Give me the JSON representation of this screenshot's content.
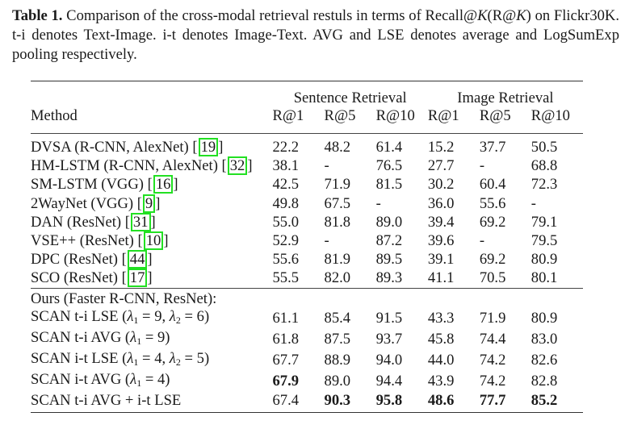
{
  "caption": {
    "label": "Table 1.",
    "text_part1": " Comparison of the cross-modal retrieval restuls in terms of Recall@",
    "k1": "K",
    "text_part2": "(R@",
    "k2": "K",
    "text_part3": ") on Flickr30K. t-i denotes Text-Image. i-t denotes Image-Text. AVG and LSE denotes average and LogSumExp pooling respectively."
  },
  "table": {
    "groups": [
      "Sentence Retrieval",
      "Image Retrieval"
    ],
    "method_header": "Method",
    "columns": [
      "R@1",
      "R@5",
      "R@10",
      "R@1",
      "R@5",
      "R@10"
    ],
    "baselines": [
      {
        "method": "DVSA (R-CNN, AlexNet) ",
        "cite": "19",
        "values": [
          "22.2",
          "48.2",
          "61.4",
          "15.2",
          "37.7",
          "50.5"
        ]
      },
      {
        "method": "HM-LSTM (R-CNN, AlexNet) ",
        "cite": "32",
        "values": [
          "38.1",
          "-",
          "76.5",
          "27.7",
          "-",
          "68.8"
        ]
      },
      {
        "method": "SM-LSTM (VGG) ",
        "cite": "16",
        "values": [
          "42.5",
          "71.9",
          "81.5",
          "30.2",
          "60.4",
          "72.3"
        ]
      },
      {
        "method": "2WayNet (VGG) ",
        "cite": "9",
        "values": [
          "49.8",
          "67.5",
          "-",
          "36.0",
          "55.6",
          "-"
        ]
      },
      {
        "method": "DAN (ResNet) ",
        "cite": "31",
        "values": [
          "55.0",
          "81.8",
          "89.0",
          "39.4",
          "69.2",
          "79.1"
        ]
      },
      {
        "method": "VSE++ (ResNet) ",
        "cite": "10",
        "values": [
          "52.9",
          "-",
          "87.2",
          "39.6",
          "-",
          "79.5"
        ]
      },
      {
        "method": "DPC (ResNet) ",
        "cite": "44",
        "values": [
          "55.6",
          "81.9",
          "89.5",
          "39.1",
          "69.2",
          "80.9"
        ]
      },
      {
        "method": "SCO (ResNet) ",
        "cite": "17",
        "values": [
          "55.5",
          "82.0",
          "89.3",
          "41.1",
          "70.5",
          "80.1"
        ]
      }
    ],
    "ours_header": "Ours (Faster R-CNN, ResNet):",
    "ours": [
      {
        "prefix": "SCAN t-i LSE (",
        "lambda_text": "λ1 = 9, λ2 = 6",
        "l1": "9",
        "l2": "6",
        "suffix": ")",
        "values": [
          "61.1",
          "85.4",
          "91.5",
          "43.3",
          "71.9",
          "80.9"
        ],
        "bold": [
          false,
          false,
          false,
          false,
          false,
          false
        ]
      },
      {
        "prefix": "SCAN t-i AVG (",
        "lambda_text": "λ1 = 9",
        "l1": "9",
        "suffix": ")",
        "values": [
          "61.8",
          "87.5",
          "93.7",
          "45.8",
          "74.4",
          "83.0"
        ],
        "bold": [
          false,
          false,
          false,
          false,
          false,
          false
        ]
      },
      {
        "prefix": "SCAN i-t LSE (",
        "lambda_text": "λ1 = 4, λ2 = 5",
        "l1": "4",
        "l2": "5",
        "suffix": ")",
        "values": [
          "67.7",
          "88.9",
          "94.0",
          "44.0",
          "74.2",
          "82.6"
        ],
        "bold": [
          false,
          false,
          false,
          false,
          false,
          false
        ]
      },
      {
        "prefix": "SCAN i-t AVG (",
        "lambda_text": "λ1 = 4",
        "l1": "4",
        "suffix": ")",
        "values": [
          "67.9",
          "89.0",
          "94.4",
          "43.9",
          "74.2",
          "82.8"
        ],
        "bold": [
          true,
          false,
          false,
          false,
          false,
          false
        ]
      },
      {
        "prefix": "SCAN t-i AVG + i-t LSE",
        "values": [
          "67.4",
          "90.3",
          "95.8",
          "48.6",
          "77.7",
          "85.2"
        ],
        "bold": [
          false,
          true,
          true,
          true,
          true,
          true
        ]
      }
    ]
  },
  "colors": {
    "text": "#1a1a1a",
    "citation_box": "#22e022",
    "rules": "#333333"
  }
}
